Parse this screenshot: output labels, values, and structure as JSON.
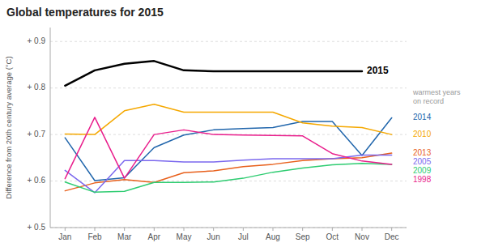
{
  "chart_data": {
    "type": "line",
    "title": "Global temperatures for 2015",
    "y_label": "Difference from 20th century average (°C)",
    "categories": [
      "Jan",
      "Feb",
      "Mar",
      "Apr",
      "May",
      "Jun",
      "Jul",
      "Aug",
      "Sep",
      "Oct",
      "Nov",
      "Dec"
    ],
    "series": [
      {
        "name": "2014",
        "color": "#2166ac",
        "values": [
          0.693,
          0.601,
          0.607,
          0.672,
          0.699,
          0.71,
          0.713,
          0.715,
          0.728,
          0.728,
          0.655,
          0.736
        ]
      },
      {
        "name": "2010",
        "color": "#f5a800",
        "values": [
          0.701,
          0.7,
          0.751,
          0.765,
          0.748,
          0.748,
          0.748,
          0.748,
          0.725,
          0.718,
          0.715,
          0.7
        ]
      },
      {
        "name": "2013",
        "color": "#e8601c",
        "values": [
          0.579,
          0.596,
          0.603,
          0.597,
          0.618,
          0.622,
          0.631,
          0.636,
          0.644,
          0.648,
          0.65,
          0.66
        ]
      },
      {
        "name": "2005",
        "color": "#7b68ee",
        "values": [
          0.623,
          0.575,
          0.644,
          0.644,
          0.641,
          0.641,
          0.645,
          0.648,
          0.648,
          0.648,
          0.656,
          0.656
        ]
      },
      {
        "name": "2009",
        "color": "#2ecc71",
        "values": [
          0.598,
          0.576,
          0.578,
          0.597,
          0.597,
          0.598,
          0.606,
          0.619,
          0.628,
          0.635,
          0.638,
          0.636
        ]
      },
      {
        "name": "1998",
        "color": "#e91e8c",
        "values": [
          0.605,
          0.737,
          0.606,
          0.7,
          0.71,
          0.7,
          0.699,
          0.698,
          0.697,
          0.659,
          0.643,
          0.636
        ]
      },
      {
        "name": "2015",
        "color": "#000000",
        "values": [
          0.805,
          0.838,
          0.852,
          0.858,
          0.838,
          0.836,
          0.836,
          0.836,
          0.836,
          0.836,
          0.836,
          null
        ]
      }
    ],
    "ylim": [
      0.5,
      0.93
    ],
    "yticks": [
      {
        "value": 0.5,
        "label": "+ 0.5"
      },
      {
        "value": 0.6,
        "label": "+ 0.6"
      },
      {
        "value": 0.7,
        "label": "+ 0.7"
      },
      {
        "value": 0.8,
        "label": "+ 0.8"
      },
      {
        "value": 0.9,
        "label": "+ 0.9"
      }
    ],
    "annotations": [
      "warmest years",
      "on record"
    ],
    "grid": true
  }
}
